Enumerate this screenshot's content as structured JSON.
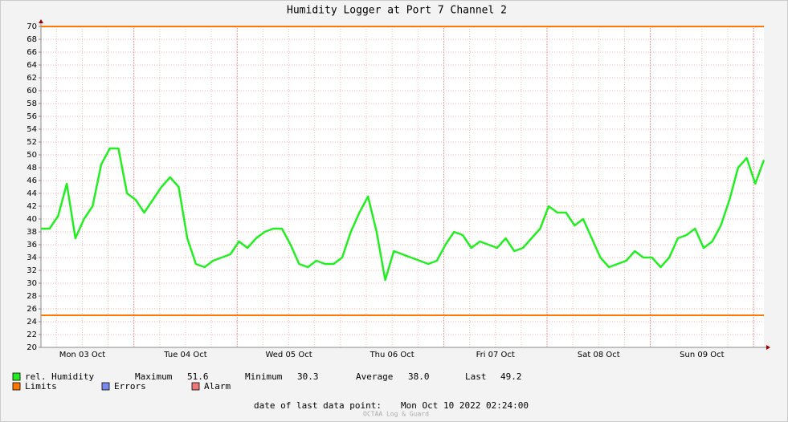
{
  "chart_data": {
    "type": "line",
    "title": "Humidity Logger at Port 7 Channel 2",
    "x_labels": [
      "Mon 03 Oct",
      "Tue 04 Oct",
      "Wed 05 Oct",
      "Thu 06 Oct",
      "Fri 07 Oct",
      "Sat 08 Oct",
      "Sun 09 Oct"
    ],
    "ylim": [
      20,
      70
    ],
    "yticks": [
      20,
      22,
      24,
      26,
      28,
      30,
      32,
      34,
      36,
      38,
      40,
      42,
      44,
      46,
      48,
      50,
      52,
      54,
      56,
      58,
      60,
      62,
      64,
      66,
      68,
      70
    ],
    "grid": true,
    "series": [
      {
        "name": "rel. Humidity",
        "color": "#22ee22",
        "values": [
          38.5,
          38.5,
          40.5,
          45.5,
          37,
          40,
          42,
          48.5,
          51,
          51,
          44,
          43,
          41,
          43,
          45,
          46.5,
          45,
          37,
          33,
          32.5,
          33.5,
          34,
          34.5,
          36.5,
          35.5,
          37,
          38,
          38.5,
          38.5,
          36,
          33,
          32.5,
          33.5,
          33,
          33,
          34,
          38,
          41,
          43.5,
          38,
          30.5,
          35,
          34.5,
          34,
          33.5,
          33,
          33.5,
          36,
          38,
          37.5,
          35.5,
          36.5,
          36,
          35.5,
          37,
          35,
          35.5,
          37,
          38.5,
          42,
          41,
          41,
          39,
          40,
          37,
          34,
          32.5,
          33,
          33.5,
          35,
          34,
          34,
          32.5,
          34,
          37,
          37.5,
          38.5,
          35.5,
          36.5,
          39,
          43,
          48,
          49.5,
          45.5,
          49.2
        ]
      }
    ],
    "limits": {
      "name": "Limits",
      "color": "#ff7700",
      "values": [
        25,
        70
      ]
    },
    "stats": [
      {
        "name": "Maximum",
        "value": 51.6
      },
      {
        "name": "Minimum",
        "value": 30.3
      },
      {
        "name": "Average",
        "value": {
          "value": 38.0,
          "label": "38.0"
        }
      },
      {
        "name": "Last",
        "value": 49.2
      }
    ],
    "legend_extra": [
      {
        "name": "Errors",
        "color": "#7788ee"
      },
      {
        "name": "Alarm",
        "color": "#ee7777"
      }
    ],
    "footer": {
      "label": "date of last data point:",
      "value": "Mon Oct 10 2022 02:24:00"
    },
    "credit": "OCTAA Log & Guard"
  }
}
